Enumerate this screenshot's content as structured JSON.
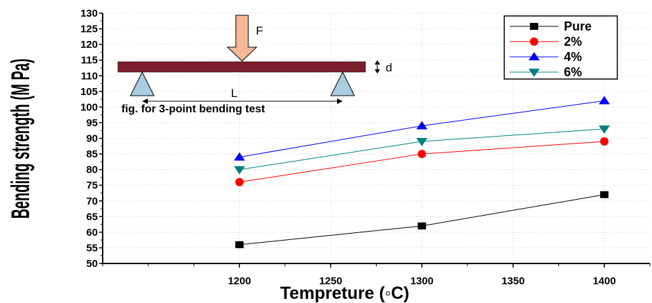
{
  "chart_data": {
    "type": "line",
    "title": "",
    "xlabel": "Tempreture (◦C)",
    "ylabel": "Bending strength (M Pa)",
    "x": [
      1200,
      1300,
      1400
    ],
    "xlim": [
      1125,
      1425
    ],
    "ylim": [
      50,
      130
    ],
    "xticks": [
      1200,
      1250,
      1300,
      1350,
      1400
    ],
    "yticks": [
      50,
      55,
      60,
      65,
      70,
      75,
      80,
      85,
      90,
      95,
      100,
      105,
      110,
      115,
      120,
      125,
      130
    ],
    "grid": true,
    "legend_position": "top-right",
    "series": [
      {
        "name": "Pure",
        "values": [
          56,
          62,
          72
        ],
        "color": "#000000",
        "marker": "square"
      },
      {
        "name": "2%",
        "values": [
          76,
          85,
          89
        ],
        "color": "#ff0000",
        "marker": "circle"
      },
      {
        "name": "4%",
        "values": [
          84,
          94,
          102
        ],
        "color": "#0000ff",
        "marker": "triangle-up"
      },
      {
        "name": "6%",
        "values": [
          80,
          89,
          93
        ],
        "color": "#008080",
        "marker": "triangle-down"
      }
    ],
    "inset": {
      "force_label": "F",
      "depth_label": "d",
      "span_label": "L",
      "caption": "fig. for 3-point bending test",
      "beam_color": "#7b1f2e",
      "arrow_color": "#f6b896",
      "support_color": "#a8cce0"
    }
  }
}
